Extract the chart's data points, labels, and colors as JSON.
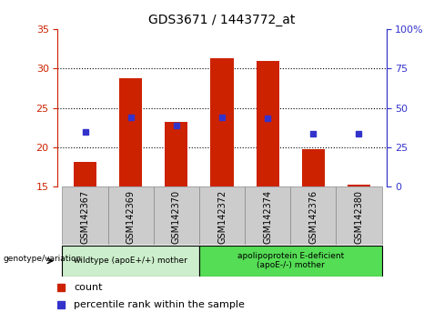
{
  "title": "GDS3671 / 1443772_at",
  "categories": [
    "GSM142367",
    "GSM142369",
    "GSM142370",
    "GSM142372",
    "GSM142374",
    "GSM142376",
    "GSM142380"
  ],
  "bar_bottoms": 15,
  "bar_tops": [
    18.2,
    28.8,
    23.2,
    31.3,
    31.0,
    19.8,
    15.3
  ],
  "blue_values": [
    22.0,
    23.8,
    22.8,
    23.8,
    23.7,
    21.7,
    21.7
  ],
  "ylim_left": [
    15,
    35
  ],
  "yticks_left": [
    15,
    20,
    25,
    30,
    35
  ],
  "ytick_labels_right": [
    "0",
    "25",
    "50",
    "75",
    "100%"
  ],
  "grid_values": [
    20,
    25,
    30
  ],
  "bar_color": "#cc2200",
  "blue_color": "#3333cc",
  "bar_width": 0.5,
  "group1_label": "wildtype (apoE+/+) mother",
  "group2_label": "apolipoprotein E-deficient\n(apoE-/-) mother",
  "group1_indices": [
    0,
    1,
    2
  ],
  "group2_indices": [
    3,
    4,
    5,
    6
  ],
  "group1_color": "#cceecc",
  "group2_color": "#55dd55",
  "legend_count_label": "count",
  "legend_pct_label": "percentile rank within the sample",
  "genotype_label": "genotype/variation",
  "left_axis_color": "#cc2200",
  "right_axis_color": "#3333cc",
  "bg_color": "#ffffff",
  "tick_label_bg": "#cccccc"
}
